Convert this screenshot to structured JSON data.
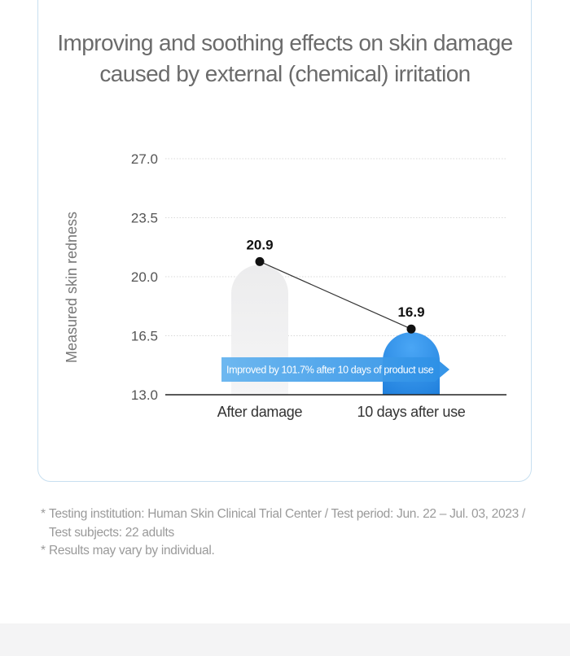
{
  "chart_data": {
    "type": "bar",
    "title_lines": [
      "Improving and soothing effects on skin damage",
      "caused by external (chemical) irritation"
    ],
    "ylabel": "Measured skin redness",
    "xlabel": "",
    "ylim": [
      13.0,
      27.0
    ],
    "yticks": [
      "27.0",
      "23.5",
      "20.0",
      "16.5",
      "13.0"
    ],
    "yticks_values": [
      27.0,
      23.5,
      20.0,
      16.5,
      13.0
    ],
    "categories": [
      "After damage",
      "10 days after use"
    ],
    "values": [
      20.9,
      16.9
    ],
    "value_labels": [
      "20.9",
      "16.9"
    ],
    "trend_line": true,
    "grid": true,
    "annotation": "Improved by 101.7% after 10 days of product use"
  },
  "colors": {
    "bar_after_damage": "#eeeeef",
    "bar_after_use": "#2d8fe8",
    "arrow": "#3d9be9",
    "axis": "#222222",
    "grid": "#d8d8d8",
    "point": "#111111"
  },
  "notes": [
    "Testing institution: Human Skin Clinical Trial Center / Test period: Jun. 22 – Jul. 03, 2023 /",
    "Test subjects: 22 adults",
    "Results may vary by individual."
  ],
  "note_marker": "*"
}
